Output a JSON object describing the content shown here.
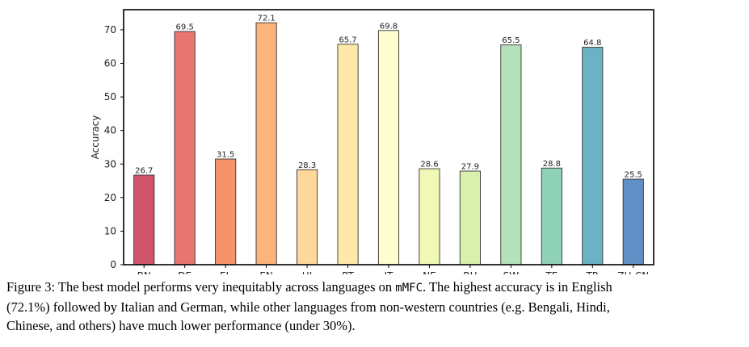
{
  "chart_data": {
    "type": "bar",
    "categories": [
      "BN",
      "DE",
      "EL",
      "EN",
      "HI",
      "PT",
      "IT",
      "NE",
      "RU",
      "SW",
      "TE",
      "TR",
      "ZH-CN"
    ],
    "values": [
      26.7,
      69.5,
      31.5,
      72.1,
      28.3,
      65.7,
      69.8,
      28.6,
      27.9,
      65.5,
      28.8,
      64.8,
      25.5
    ],
    "data_labels": [
      "26.7",
      "69.5",
      "31.5",
      "72.1",
      "28.3",
      "65.7",
      "69.8",
      "28.6",
      "27.9",
      "65.5",
      "28.8",
      "64.8",
      "25.5"
    ],
    "colors": [
      "#d0546c",
      "#e8756f",
      "#f6936b",
      "#fcb37c",
      "#fed89a",
      "#fee9a8",
      "#fefdd0",
      "#f1f8b6",
      "#d9efad",
      "#b4e1b9",
      "#8fd2b7",
      "#6bb2c4",
      "#5f8fc4"
    ],
    "xlabel": "",
    "ylabel": "Accuracy",
    "ylim": [
      0,
      76
    ],
    "yticks": [
      0,
      10,
      20,
      30,
      40,
      50,
      60,
      70
    ],
    "grid": false,
    "legend": "none"
  },
  "caption": {
    "line1_a": "Figure 3: The best model performs very inequitably across languages on ",
    "line1_mono": "mMFC",
    "line1_b": ". The highest accuracy is in English",
    "line2": "(72.1%) followed by Italian and German, while other languages from non-western countries (e.g. Bengali, Hindi,",
    "line3": "Chinese, and others) have much lower performance (under 30%)."
  }
}
